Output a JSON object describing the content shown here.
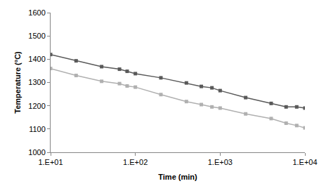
{
  "chart_data": {
    "type": "line",
    "x_label": "Time (min)",
    "y_label": "Temperature (°C)",
    "log": "x",
    "grid": false,
    "marker": "square",
    "x": [
      10,
      20,
      40,
      65,
      80,
      100,
      200,
      400,
      600,
      800,
      1000,
      2000,
      4000,
      6000,
      8000,
      10000
    ],
    "series": [
      {
        "color": "#595959",
        "values": [
          1420,
          1393,
          1368,
          1357,
          1348,
          1338,
          1320,
          1298,
          1283,
          1277,
          1265,
          1235,
          1210,
          1195,
          1195,
          1190
        ]
      },
      {
        "color": "#b0b0b0",
        "values": [
          1360,
          1330,
          1305,
          1295,
          1285,
          1280,
          1248,
          1218,
          1205,
          1195,
          1190,
          1165,
          1145,
          1125,
          1115,
          1105
        ]
      }
    ],
    "xlim": [
      10,
      10000
    ],
    "xticks": [
      {
        "value": 10,
        "label": "1.E+01"
      },
      {
        "value": 100,
        "label": "1.E+02"
      },
      {
        "value": 1000,
        "label": "1.E+03"
      },
      {
        "value": 10000,
        "label": "1.E+04"
      }
    ],
    "ylim": [
      1000,
      1600
    ],
    "yticks": [
      1000,
      1100,
      1200,
      1300,
      1400,
      1500,
      1600
    ]
  }
}
